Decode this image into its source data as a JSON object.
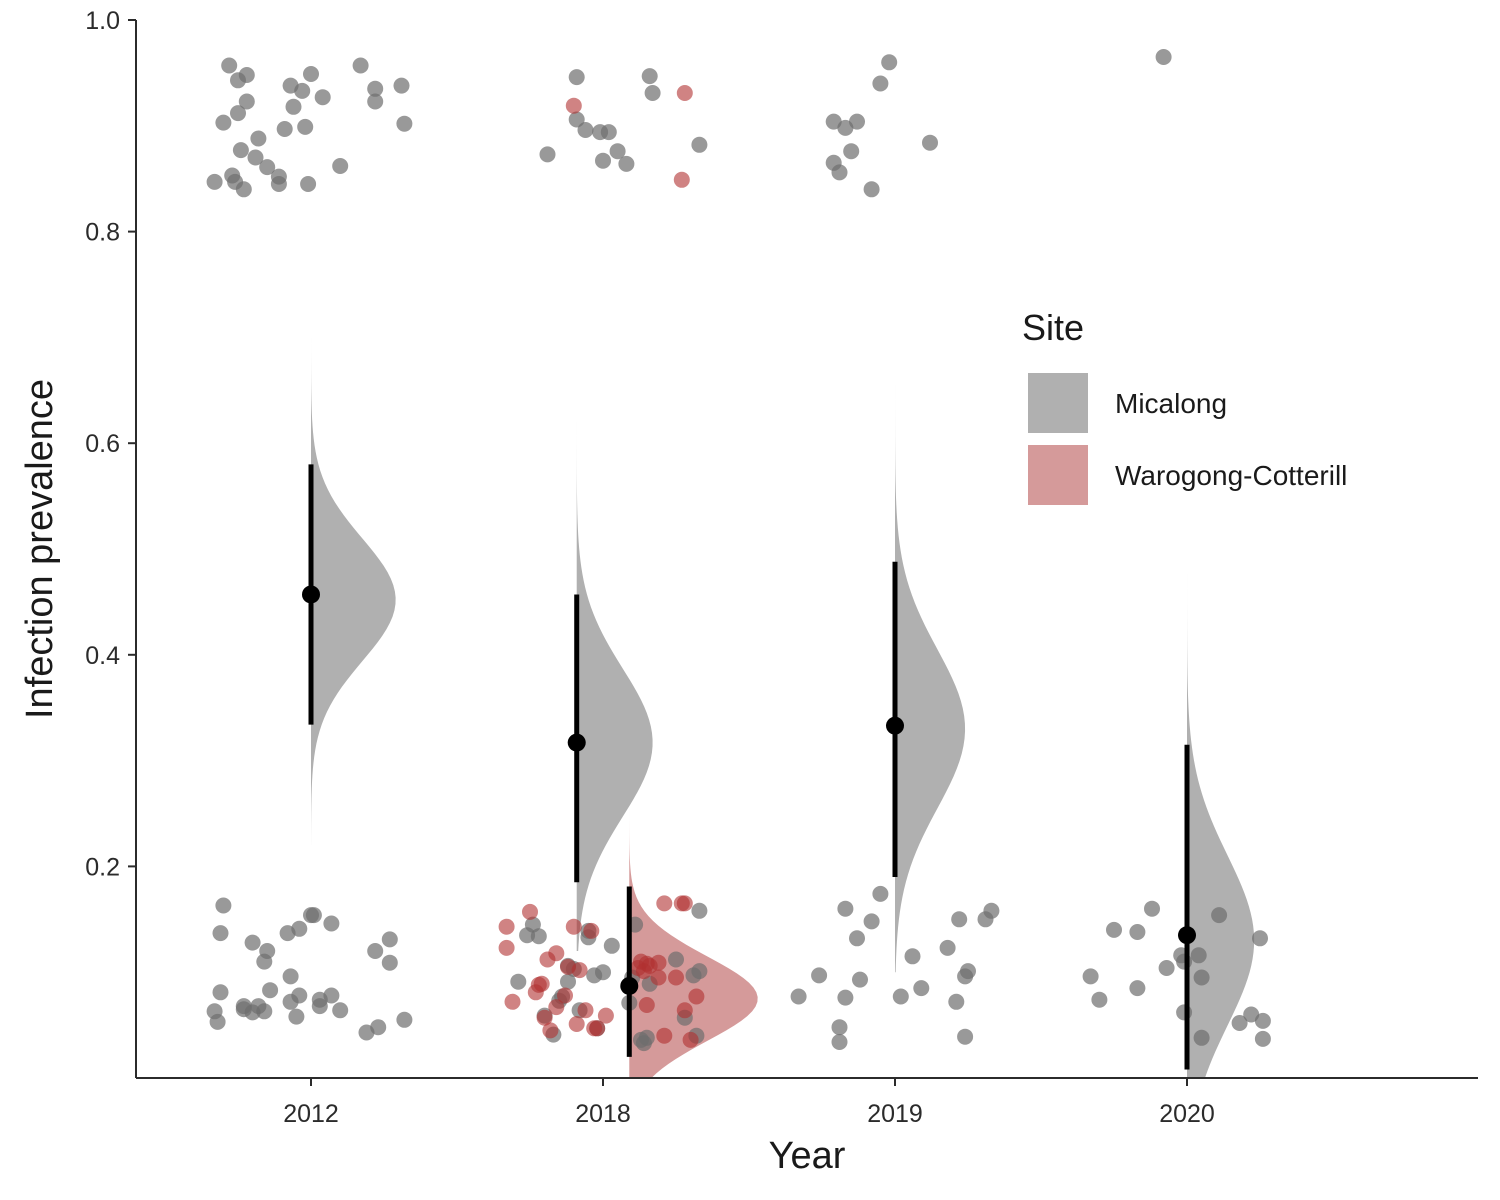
{
  "chart_data": {
    "type": "scatter",
    "subtype": "raincloud",
    "title": "",
    "xlabel": "Year",
    "ylabel": "Infection prevalence",
    "categories": [
      "2012",
      "2018",
      "2019",
      "2020"
    ],
    "ylim": [
      0,
      1.0
    ],
    "yticks": [
      "0.2",
      "0.4",
      "0.6",
      "0.8",
      "1.0"
    ],
    "grid": false,
    "legend": {
      "title": "Site",
      "position": "right",
      "entries": [
        {
          "label": "Micalong",
          "color": "#b0b0b0"
        },
        {
          "label": "Warogong-Cotterill",
          "color": "#d59a9a"
        }
      ]
    },
    "colors": {
      "Micalong_point": "#6e6e6e",
      "Warogong_point": "#b03030",
      "Micalong_density": "#b0b0b0",
      "Warogong_density": "#d59a9a",
      "summary": "#000000"
    },
    "series": [
      {
        "name": "Micalong",
        "summaries": [
          {
            "category": "2012",
            "offset": 0.0,
            "median": 0.457,
            "lower": 0.334,
            "upper": 0.58
          },
          {
            "category": "2018",
            "offset": -0.09,
            "median": 0.317,
            "lower": 0.185,
            "upper": 0.457
          },
          {
            "category": "2019",
            "offset": 0.0,
            "median": 0.333,
            "lower": 0.19,
            "upper": 0.488
          },
          {
            "category": "2020",
            "offset": 0.0,
            "median": 0.135,
            "lower": 0.008,
            "upper": 0.315
          }
        ],
        "densities": [
          {
            "category": "2012",
            "offset": 0.0,
            "ymin": 0.22,
            "ymax": 0.7,
            "mode": 0.452,
            "sd": 0.058,
            "width": 0.29
          },
          {
            "category": "2018",
            "offset": -0.09,
            "ymin": 0.12,
            "ymax": 0.62,
            "mode": 0.317,
            "sd": 0.07,
            "width": 0.26
          },
          {
            "category": "2019",
            "offset": 0.0,
            "ymin": 0.1,
            "ymax": 0.67,
            "mode": 0.33,
            "sd": 0.075,
            "width": 0.24
          },
          {
            "category": "2020",
            "offset": 0.0,
            "ymin": 0.0,
            "ymax": 0.5,
            "mode": 0.13,
            "sd": 0.08,
            "width": 0.23
          }
        ],
        "points": [
          [
            -0.33,
            0.847
          ],
          [
            -0.3,
            0.903
          ],
          [
            -0.28,
            0.957
          ],
          [
            -0.27,
            0.853
          ],
          [
            -0.26,
            0.847
          ],
          [
            -0.25,
            0.943
          ],
          [
            -0.25,
            0.912
          ],
          [
            -0.24,
            0.877
          ],
          [
            -0.23,
            0.84
          ],
          [
            -0.22,
            0.948
          ],
          [
            -0.22,
            0.923
          ],
          [
            -0.19,
            0.87
          ],
          [
            -0.18,
            0.888
          ],
          [
            -0.15,
            0.861
          ],
          [
            -0.11,
            0.852
          ],
          [
            -0.11,
            0.845
          ],
          [
            -0.09,
            0.897
          ],
          [
            -0.07,
            0.938
          ],
          [
            -0.06,
            0.918
          ],
          [
            -0.03,
            0.933
          ],
          [
            -0.02,
            0.899
          ],
          [
            -0.01,
            0.845
          ],
          [
            0.0,
            0.949
          ],
          [
            0.04,
            0.927
          ],
          [
            0.1,
            0.862
          ],
          [
            0.17,
            0.957
          ],
          [
            0.22,
            0.935
          ],
          [
            0.22,
            0.923
          ],
          [
            0.31,
            0.938
          ],
          [
            0.32,
            0.902
          ],
          [
            -0.33,
            0.063
          ],
          [
            -0.32,
            0.053
          ],
          [
            -0.31,
            0.081
          ],
          [
            -0.31,
            0.137
          ],
          [
            -0.3,
            0.163
          ],
          [
            -0.23,
            0.065
          ],
          [
            -0.23,
            0.068
          ],
          [
            -0.2,
            0.062
          ],
          [
            -0.2,
            0.128
          ],
          [
            -0.18,
            0.068
          ],
          [
            -0.16,
            0.063
          ],
          [
            -0.16,
            0.11
          ],
          [
            -0.15,
            0.12
          ],
          [
            -0.14,
            0.083
          ],
          [
            -0.08,
            0.137
          ],
          [
            -0.07,
            0.096
          ],
          [
            -0.07,
            0.072
          ],
          [
            -0.05,
            0.058
          ],
          [
            -0.04,
            0.141
          ],
          [
            -0.04,
            0.078
          ],
          [
            0.0,
            0.154
          ],
          [
            0.01,
            0.154
          ],
          [
            0.03,
            0.074
          ],
          [
            0.03,
            0.068
          ],
          [
            0.07,
            0.078
          ],
          [
            0.07,
            0.146
          ],
          [
            0.1,
            0.064
          ],
          [
            0.19,
            0.043
          ],
          [
            0.22,
            0.12
          ],
          [
            0.23,
            0.048
          ],
          [
            0.27,
            0.131
          ],
          [
            0.27,
            0.109
          ],
          [
            0.32,
            0.055
          ],
          [
            -0.19,
            0.873
          ],
          [
            -0.09,
            0.946
          ],
          [
            -0.09,
            0.906
          ],
          [
            -0.06,
            0.896
          ],
          [
            -0.01,
            0.894
          ],
          [
            0.0,
            0.867
          ],
          [
            0.02,
            0.894
          ],
          [
            0.05,
            0.876
          ],
          [
            0.08,
            0.864
          ],
          [
            0.16,
            0.947
          ],
          [
            0.17,
            0.931
          ],
          [
            0.33,
            0.882
          ],
          [
            -0.29,
            0.091
          ],
          [
            -0.26,
            0.135
          ],
          [
            -0.24,
            0.145
          ],
          [
            -0.22,
            0.134
          ],
          [
            -0.2,
            0.059
          ],
          [
            -0.17,
            0.041
          ],
          [
            -0.15,
            0.073
          ],
          [
            -0.14,
            0.077
          ],
          [
            -0.12,
            0.106
          ],
          [
            -0.12,
            0.091
          ],
          [
            -0.1,
            0.103
          ],
          [
            -0.08,
            0.064
          ],
          [
            -0.05,
            0.133
          ],
          [
            -0.05,
            0.139
          ],
          [
            -0.03,
            0.097
          ],
          [
            -0.02,
            0.047
          ],
          [
            0.0,
            0.1
          ],
          [
            0.03,
            0.125
          ],
          [
            0.09,
            0.071
          ],
          [
            0.1,
            0.095
          ],
          [
            0.11,
            0.145
          ],
          [
            0.13,
            0.036
          ],
          [
            0.14,
            0.033
          ],
          [
            0.15,
            0.038
          ],
          [
            0.16,
            0.089
          ],
          [
            0.25,
            0.112
          ],
          [
            0.28,
            0.057
          ],
          [
            0.31,
            0.097
          ],
          [
            0.32,
            0.04
          ],
          [
            0.33,
            0.101
          ],
          [
            0.33,
            0.158
          ],
          [
            -0.21,
            0.904
          ],
          [
            -0.21,
            0.865
          ],
          [
            -0.19,
            0.856
          ],
          [
            -0.17,
            0.898
          ],
          [
            -0.15,
            0.876
          ],
          [
            -0.13,
            0.904
          ],
          [
            -0.08,
            0.84
          ],
          [
            -0.05,
            0.94
          ],
          [
            -0.02,
            0.96
          ],
          [
            0.12,
            0.884
          ],
          [
            -0.33,
            0.077
          ],
          [
            -0.26,
            0.097
          ],
          [
            -0.19,
            0.048
          ],
          [
            -0.19,
            0.034
          ],
          [
            -0.17,
            0.16
          ],
          [
            -0.17,
            0.076
          ],
          [
            -0.13,
            0.132
          ],
          [
            -0.12,
            0.093
          ],
          [
            -0.08,
            0.148
          ],
          [
            -0.05,
            0.174
          ],
          [
            0.02,
            0.077
          ],
          [
            0.06,
            0.115
          ],
          [
            0.09,
            0.085
          ],
          [
            0.18,
            0.123
          ],
          [
            0.21,
            0.072
          ],
          [
            0.22,
            0.15
          ],
          [
            0.24,
            0.096
          ],
          [
            0.24,
            0.039
          ],
          [
            0.25,
            0.101
          ],
          [
            0.31,
            0.15
          ],
          [
            0.33,
            0.158
          ],
          [
            -0.08,
            0.965
          ],
          [
            -0.33,
            0.096
          ],
          [
            -0.3,
            0.074
          ],
          [
            -0.25,
            0.14
          ],
          [
            -0.17,
            0.085
          ],
          [
            -0.17,
            0.138
          ],
          [
            -0.12,
            0.16
          ],
          [
            -0.07,
            0.104
          ],
          [
            -0.02,
            0.116
          ],
          [
            -0.01,
            0.11
          ],
          [
            -0.01,
            0.062
          ],
          [
            0.04,
            0.116
          ],
          [
            0.05,
            0.095
          ],
          [
            0.05,
            0.038
          ],
          [
            0.11,
            0.154
          ],
          [
            0.18,
            0.052
          ],
          [
            0.22,
            0.06
          ],
          [
            0.25,
            0.132
          ],
          [
            0.26,
            0.054
          ],
          [
            0.26,
            0.037
          ]
        ],
        "point_categories": [
          30,
          33,
          12,
          31,
          10,
          21,
          1,
          19
        ]
      },
      {
        "name": "Warogong-Cotterill",
        "summaries": [
          {
            "category": "2018",
            "offset": 0.09,
            "median": 0.087,
            "lower": 0.02,
            "upper": 0.181
          }
        ],
        "densities": [
          {
            "category": "2018",
            "offset": 0.09,
            "ymin": 0.0,
            "ymax": 0.36,
            "mode": 0.075,
            "sd": 0.04,
            "width": 0.44
          }
        ],
        "points": [
          [
            -0.1,
            0.919
          ],
          [
            0.28,
            0.931
          ],
          [
            0.27,
            0.849
          ],
          [
            -0.33,
            0.143
          ],
          [
            -0.33,
            0.123
          ],
          [
            -0.31,
            0.072
          ],
          [
            -0.25,
            0.157
          ],
          [
            -0.23,
            0.081
          ],
          [
            -0.22,
            0.088
          ],
          [
            -0.21,
            0.089
          ],
          [
            -0.2,
            0.057
          ],
          [
            -0.19,
            0.112
          ],
          [
            -0.18,
            0.045
          ],
          [
            -0.16,
            0.067
          ],
          [
            -0.16,
            0.118
          ],
          [
            -0.13,
            0.078
          ],
          [
            -0.12,
            0.105
          ],
          [
            -0.1,
            0.143
          ],
          [
            -0.09,
            0.051
          ],
          [
            -0.08,
            0.102
          ],
          [
            -0.06,
            0.064
          ],
          [
            -0.04,
            0.139
          ],
          [
            -0.03,
            0.047
          ],
          [
            -0.02,
            0.047
          ],
          [
            0.01,
            0.059
          ],
          [
            0.12,
            0.104
          ],
          [
            0.13,
            0.11
          ],
          [
            0.14,
            0.101
          ],
          [
            0.15,
            0.069
          ],
          [
            0.15,
            0.108
          ],
          [
            0.16,
            0.106
          ],
          [
            0.19,
            0.095
          ],
          [
            0.19,
            0.109
          ],
          [
            0.21,
            0.165
          ],
          [
            0.21,
            0.04
          ],
          [
            0.25,
            0.095
          ],
          [
            0.27,
            0.165
          ],
          [
            0.28,
            0.165
          ],
          [
            0.28,
            0.064
          ],
          [
            0.3,
            0.036
          ],
          [
            0.32,
            0.077
          ]
        ],
        "point_categories": [
          3,
          38
        ]
      }
    ]
  }
}
